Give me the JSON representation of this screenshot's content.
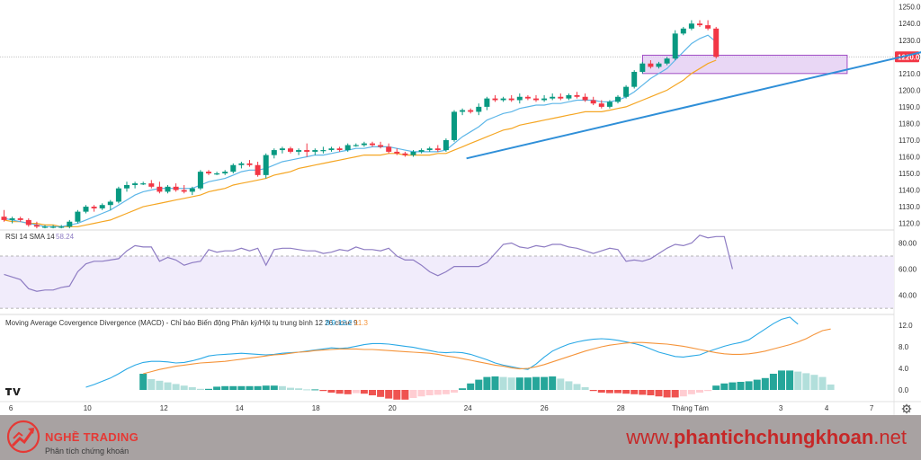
{
  "chart_data": [
    {
      "type": "candlestick",
      "price_axis": {
        "ticks": [
          "1250.0",
          "1240.0",
          "1230.0",
          "1220.0",
          "1210.0",
          "1200.0",
          "1190.0",
          "1180.0",
          "1170.0",
          "1160.0",
          "1150.0",
          "1140.0",
          "1130.0",
          "1120.0"
        ],
        "ylim": [
          1116,
          1252
        ]
      },
      "last_price": "1220.0",
      "time_axis": {
        "labels": [
          "6",
          "10",
          "12",
          "14",
          "18",
          "20",
          "24",
          "26",
          "28",
          "Tháng Tám",
          "3",
          "4",
          "7"
        ]
      },
      "candles": [
        [
          1124,
          1128,
          1121,
          1122
        ],
        [
          1122,
          1124,
          1120,
          1123
        ],
        [
          1123,
          1124,
          1121,
          1122
        ],
        [
          1122,
          1123,
          1118,
          1119
        ],
        [
          1119,
          1121,
          1117,
          1118
        ],
        [
          1118,
          1119,
          1117,
          1118
        ],
        [
          1118,
          1119,
          1117,
          1118
        ],
        [
          1118,
          1119,
          1117,
          1118
        ],
        [
          1118,
          1122,
          1117,
          1121
        ],
        [
          1121,
          1128,
          1120,
          1127
        ],
        [
          1127,
          1131,
          1126,
          1130
        ],
        [
          1130,
          1131,
          1127,
          1129
        ],
        [
          1129,
          1132,
          1128,
          1131
        ],
        [
          1131,
          1134,
          1128,
          1133
        ],
        [
          1133,
          1142,
          1132,
          1141
        ],
        [
          1141,
          1145,
          1139,
          1143
        ],
        [
          1143,
          1145,
          1141,
          1144
        ],
        [
          1144,
          1145,
          1143,
          1144
        ],
        [
          1144,
          1146,
          1141,
          1142
        ],
        [
          1142,
          1145,
          1138,
          1139
        ],
        [
          1139,
          1143,
          1138,
          1142
        ],
        [
          1142,
          1144,
          1139,
          1140
        ],
        [
          1140,
          1143,
          1138,
          1139
        ],
        [
          1139,
          1142,
          1137,
          1141
        ],
        [
          1141,
          1152,
          1140,
          1151
        ],
        [
          1151,
          1152,
          1149,
          1150
        ],
        [
          1150,
          1151,
          1149,
          1150
        ],
        [
          1150,
          1152,
          1149,
          1151
        ],
        [
          1151,
          1156,
          1150,
          1155
        ],
        [
          1155,
          1157,
          1153,
          1156
        ],
        [
          1156,
          1158,
          1154,
          1155
        ],
        [
          1155,
          1157,
          1148,
          1149
        ],
        [
          1149,
          1162,
          1147,
          1161
        ],
        [
          1161,
          1165,
          1159,
          1164
        ],
        [
          1164,
          1166,
          1162,
          1165
        ],
        [
          1165,
          1166,
          1162,
          1163
        ],
        [
          1163,
          1165,
          1161,
          1164
        ],
        [
          1164,
          1168,
          1160,
          1163
        ],
        [
          1163,
          1165,
          1161,
          1164
        ],
        [
          1164,
          1166,
          1162,
          1164
        ],
        [
          1164,
          1166,
          1163,
          1165
        ],
        [
          1165,
          1166,
          1163,
          1164
        ],
        [
          1164,
          1168,
          1163,
          1167
        ],
        [
          1167,
          1168,
          1166,
          1167
        ],
        [
          1167,
          1169,
          1166,
          1168
        ],
        [
          1168,
          1169,
          1166,
          1167
        ],
        [
          1167,
          1169,
          1165,
          1166
        ],
        [
          1166,
          1168,
          1162,
          1163
        ],
        [
          1163,
          1165,
          1161,
          1162
        ],
        [
          1162,
          1163,
          1160,
          1161
        ],
        [
          1161,
          1164,
          1160,
          1163
        ],
        [
          1163,
          1165,
          1162,
          1164
        ],
        [
          1164,
          1166,
          1163,
          1165
        ],
        [
          1165,
          1167,
          1163,
          1164
        ],
        [
          1164,
          1171,
          1163,
          1170
        ],
        [
          1170,
          1188,
          1169,
          1187
        ],
        [
          1187,
          1189,
          1185,
          1188
        ],
        [
          1188,
          1189,
          1186,
          1187
        ],
        [
          1187,
          1192,
          1185,
          1190
        ],
        [
          1190,
          1196,
          1188,
          1195
        ],
        [
          1195,
          1197,
          1193,
          1194
        ],
        [
          1194,
          1196,
          1193,
          1195
        ],
        [
          1195,
          1197,
          1193,
          1194
        ],
        [
          1194,
          1198,
          1192,
          1196
        ],
        [
          1196,
          1197,
          1194,
          1195
        ],
        [
          1195,
          1197,
          1193,
          1194
        ],
        [
          1194,
          1197,
          1193,
          1195
        ],
        [
          1195,
          1198,
          1194,
          1196
        ],
        [
          1196,
          1198,
          1194,
          1195
        ],
        [
          1195,
          1198,
          1194,
          1197
        ],
        [
          1197,
          1199,
          1195,
          1196
        ],
        [
          1196,
          1198,
          1193,
          1194
        ],
        [
          1194,
          1196,
          1191,
          1192
        ],
        [
          1192,
          1194,
          1189,
          1190
        ],
        [
          1190,
          1194,
          1189,
          1193
        ],
        [
          1193,
          1197,
          1192,
          1196
        ],
        [
          1196,
          1203,
          1195,
          1202
        ],
        [
          1202,
          1212,
          1201,
          1211
        ],
        [
          1211,
          1217,
          1210,
          1216
        ],
        [
          1216,
          1218,
          1213,
          1214
        ],
        [
          1214,
          1217,
          1213,
          1216
        ],
        [
          1216,
          1220,
          1215,
          1219
        ],
        [
          1219,
          1236,
          1218,
          1234
        ],
        [
          1234,
          1238,
          1233,
          1237
        ],
        [
          1237,
          1242,
          1236,
          1240
        ],
        [
          1240,
          1242,
          1238,
          1239
        ],
        [
          1239,
          1242,
          1236,
          1237
        ],
        [
          1237,
          1238,
          1219,
          1220
        ]
      ],
      "ma_fast": [
        1123,
        1122,
        1121,
        1120,
        1119,
        1118,
        1118,
        1118,
        1119,
        1120,
        1122,
        1124,
        1126,
        1128,
        1131,
        1134,
        1137,
        1139,
        1140,
        1141,
        1141,
        1141,
        1141,
        1141,
        1143,
        1145,
        1146,
        1147,
        1149,
        1151,
        1152,
        1152,
        1153,
        1155,
        1157,
        1158,
        1159,
        1160,
        1161,
        1161,
        1162,
        1163,
        1164,
        1165,
        1165,
        1166,
        1166,
        1166,
        1165,
        1164,
        1163,
        1163,
        1163,
        1163,
        1164,
        1168,
        1172,
        1175,
        1178,
        1182,
        1184,
        1186,
        1187,
        1189,
        1190,
        1191,
        1191,
        1192,
        1192,
        1193,
        1194,
        1194,
        1194,
        1193,
        1193,
        1194,
        1196,
        1199,
        1203,
        1207,
        1210,
        1213,
        1218,
        1223,
        1228,
        1231,
        1233,
        1229
      ],
      "ma_slow": [
        1122,
        1121,
        1121,
        1120,
        1120,
        1119,
        1119,
        1118,
        1118,
        1118,
        1119,
        1120,
        1121,
        1122,
        1124,
        1126,
        1128,
        1130,
        1131,
        1132,
        1133,
        1134,
        1135,
        1136,
        1137,
        1139,
        1140,
        1141,
        1143,
        1144,
        1145,
        1146,
        1147,
        1149,
        1150,
        1151,
        1153,
        1154,
        1155,
        1156,
        1157,
        1158,
        1159,
        1160,
        1161,
        1161,
        1161,
        1162,
        1162,
        1161,
        1161,
        1161,
        1161,
        1162,
        1162,
        1164,
        1166,
        1168,
        1170,
        1172,
        1174,
        1176,
        1177,
        1179,
        1180,
        1181,
        1182,
        1183,
        1184,
        1185,
        1186,
        1187,
        1187,
        1187,
        1188,
        1189,
        1190,
        1192,
        1194,
        1196,
        1198,
        1200,
        1203,
        1206,
        1210,
        1213,
        1216,
        1218
      ],
      "resistance_zone": {
        "start_index": 80,
        "end_index": 104,
        "low": 1210,
        "high": 1221
      },
      "trendline": {
        "x1_index": 56.5,
        "y1": 1159,
        "x2_index": 114,
        "y2": 1225
      }
    },
    {
      "type": "line",
      "name": "RSI 14 SMA 14",
      "value": "58.24",
      "ticks": [
        "80.00",
        "60.00",
        "40.00"
      ],
      "ylim": [
        28,
        90
      ],
      "bands": [
        70,
        30
      ],
      "values": [
        56,
        54,
        52,
        45,
        43,
        44,
        44,
        46,
        47,
        58,
        64,
        66,
        66,
        67,
        68,
        74,
        78,
        77,
        77,
        66,
        69,
        67,
        63,
        65,
        66,
        75,
        73,
        74,
        74,
        76,
        74,
        76,
        63,
        75,
        76,
        76,
        75,
        74,
        74,
        72,
        73,
        75,
        74,
        77,
        75,
        75,
        74,
        76,
        70,
        67,
        67,
        63,
        58,
        55,
        58,
        62,
        62,
        62,
        62,
        65,
        72,
        79,
        80,
        77,
        76,
        78,
        77,
        79,
        79,
        77,
        76,
        74,
        72,
        74,
        76,
        75,
        66,
        67,
        66,
        68,
        72,
        76,
        79,
        78,
        80,
        86,
        84,
        85,
        85,
        60
      ]
    },
    {
      "type": "macd",
      "name": "Moving Average Covergence Divergence (MACD) - Chỉ báo Biến động Phân kỳ/Hội tụ trung bình 12 26 close 9",
      "values_display": [
        "8.9",
        "12.2",
        "11.3"
      ],
      "ticks": [
        "12.0",
        "8.0",
        "4.0",
        "0.0"
      ],
      "ylim": [
        -2,
        14
      ],
      "macd": [
        0.5,
        1.0,
        1.6,
        2.2,
        3.0,
        3.9,
        4.6,
        5.1,
        5.3,
        5.3,
        5.2,
        5.0,
        5.1,
        5.4,
        5.8,
        6.3,
        6.5,
        6.6,
        6.7,
        6.8,
        6.7,
        6.6,
        6.5,
        6.6,
        6.8,
        6.9,
        7.0,
        7.2,
        7.4,
        7.6,
        7.8,
        7.7,
        7.8,
        8.1,
        8.4,
        8.6,
        8.6,
        8.5,
        8.3,
        8.1,
        7.9,
        7.6,
        7.3,
        7.0,
        6.9,
        7.0,
        6.9,
        6.6,
        6.1,
        5.6,
        5.0,
        4.6,
        4.3,
        4.0,
        3.8,
        4.8,
        6.1,
        7.2,
        7.9,
        8.5,
        8.9,
        9.2,
        9.4,
        9.5,
        9.4,
        9.2,
        8.9,
        8.6,
        8.2,
        7.6,
        7.0,
        6.6,
        6.2,
        6.1,
        6.3,
        6.5,
        7.1,
        7.6,
        8.1,
        8.5,
        8.8,
        9.3,
        10.3,
        11.3,
        12.3,
        13.1,
        13.5,
        12.2
      ],
      "signal": [
        3.0,
        3.4,
        3.8,
        4.1,
        4.4,
        4.6,
        4.8,
        5.0,
        5.1,
        5.2,
        5.3,
        5.5,
        5.7,
        5.9,
        6.1,
        6.3,
        6.5,
        6.6,
        6.8,
        7.0,
        7.1,
        7.3,
        7.4,
        7.5,
        7.6,
        7.6,
        7.6,
        7.5,
        7.5,
        7.4,
        7.3,
        7.2,
        7.1,
        7.0,
        6.9,
        6.8,
        6.6,
        6.3,
        6.1,
        5.8,
        5.5,
        5.2,
        4.9,
        4.6,
        4.4,
        4.1,
        3.9,
        4.0,
        4.3,
        4.7,
        5.2,
        5.7,
        6.2,
        6.7,
        7.2,
        7.6,
        8.0,
        8.3,
        8.5,
        8.7,
        8.8,
        8.8,
        8.7,
        8.6,
        8.5,
        8.3,
        8.1,
        7.8,
        7.5,
        7.2,
        6.9,
        6.7,
        6.6,
        6.6,
        6.7,
        6.9,
        7.2,
        7.6,
        8.0,
        8.4,
        8.9,
        9.5,
        10.3,
        11.0,
        11.3
      ],
      "histogram": [
        3.0,
        2.0,
        1.7,
        1.4,
        1.1,
        0.8,
        0.5,
        0.2,
        0.2,
        0.6,
        0.7,
        0.7,
        0.7,
        0.7,
        0.7,
        0.8,
        0.8,
        0.7,
        0.4,
        0.3,
        0.1,
        0.1,
        -0.2,
        -0.5,
        -0.7,
        -0.8,
        -0.6,
        -0.7,
        -1.0,
        -1.3,
        -1.6,
        -1.8,
        -1.8,
        -1.5,
        -1.2,
        -1.0,
        -0.9,
        -0.8,
        -0.5,
        0.3,
        1.2,
        1.9,
        2.4,
        2.5,
        2.4,
        2.3,
        2.3,
        2.3,
        2.4,
        2.4,
        2.5,
        2.1,
        1.6,
        1.1,
        0.5,
        -0.2,
        -0.5,
        -0.6,
        -0.6,
        -0.7,
        -0.8,
        -0.9,
        -1.0,
        -1.2,
        -1.4,
        -1.4,
        -1.2,
        -0.8,
        -0.5,
        -0.2,
        0.8,
        1.2,
        1.4,
        1.5,
        1.6,
        1.9,
        2.2,
        3.0,
        3.6,
        3.6,
        3.4,
        3.1,
        2.8,
        2.4,
        1.0
      ],
      "histogram_start_index": 0
    }
  ],
  "footer": {
    "brand_name": "NGHỀ TRADING",
    "brand_tagline": "Phân tích chứng khoán",
    "url_prefix": "www.",
    "url_bold": "phantichchungkhoan",
    "url_suffix": ".net"
  },
  "colors": {
    "up": "#089981",
    "down": "#f23645",
    "ma_fast": "#5db6e8",
    "ma_slow": "#f5a623",
    "trendline": "#2f8fd8",
    "zone_fill": "#e2c9f1",
    "zone_stroke": "#a04cc5",
    "rsi_line": "#8e7cc3",
    "rsi_band": "#f1ecfb",
    "macd": "#2aa9e6",
    "signal": "#f5943a",
    "hist_pos_strong": "#26a69a",
    "hist_pos_weak": "#b2dfdb",
    "hist_neg_strong": "#ef5350",
    "hist_neg_weak": "#ffcdd2",
    "price_badge": "#f23645",
    "brand_red": "#e53935"
  },
  "icons": {
    "logo": "tradingview-logo-icon",
    "settings": "gear-icon",
    "brand": "chart-arrow-logo-icon"
  }
}
